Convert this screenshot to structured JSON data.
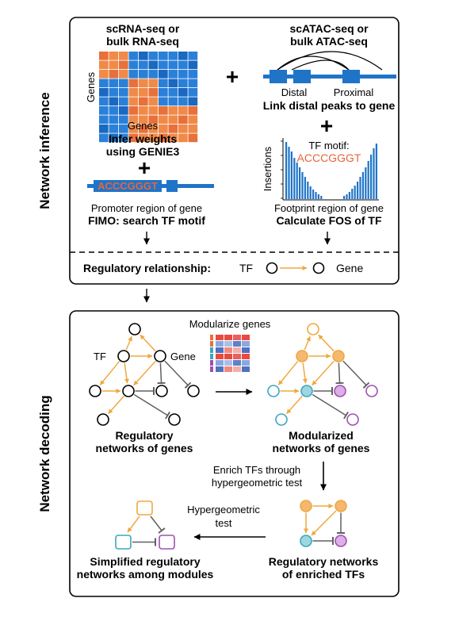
{
  "colors": {
    "orange": "#f0a840",
    "blue": "#1f74c8",
    "red_text": "#e8643c",
    "cyan": "#3aa8c0",
    "purple": "#a050b0",
    "gray_inhibit": "#606060"
  },
  "inference": {
    "side_label": "Network inference",
    "rna": {
      "title_line1": "scRNA-seq or",
      "title_line2": "bulk RNA-seq",
      "y_axis": "Genes",
      "x_axis": "Genes",
      "caption_line1": "Infer weights",
      "caption_line2": "using GENIE3"
    },
    "atac": {
      "title_line1": "scATAC-seq or",
      "title_line2": "bulk ATAC-seq",
      "distal": "Distal",
      "proximal": "Proximal",
      "caption": "Link distal peaks to gene"
    },
    "footprint": {
      "y_axis": "Insertions",
      "motif_label": "TF motif:",
      "motif_seq": "ACCCGGGT",
      "caption_line1": "Footprint region of gene",
      "caption_line2": "Calculate FOS of TF"
    },
    "fimo": {
      "motif_seq": "ACCCGGGT",
      "caption_line1": "Promoter region of gene",
      "caption_line2": "FIMO: search TF motif"
    },
    "plus": "+",
    "relationship": {
      "label": "Regulatory relationship:",
      "tf": "TF",
      "gene": "Gene"
    }
  },
  "decoding": {
    "side_label": "Network decoding",
    "modularize": "Modularize genes",
    "tf_label": "TF",
    "gene_label": "Gene",
    "regulatory_line1": "Regulatory",
    "regulatory_line2": "networks of genes",
    "modularized_line1": "Modularized",
    "modularized_line2": "networks of genes",
    "enrich_line1": "Enrich TFs through",
    "enrich_line2": "hypergeometric test",
    "hyper_line1": "Hypergeometric",
    "hyper_line2": "test",
    "enriched_line1": "Regulatory networks",
    "enriched_line2": "of enriched TFs",
    "simplified_line1": "Simplified regulatory",
    "simplified_line2": "networks among modules"
  }
}
